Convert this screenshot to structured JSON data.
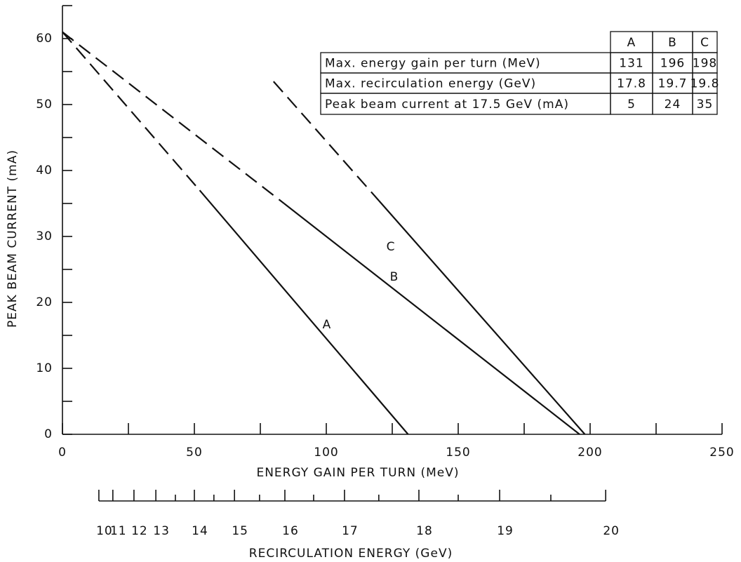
{
  "chart_data": {
    "type": "line",
    "xlabel": "ENERGY GAIN PER TURN (MeV)",
    "ylabel": "PEAK BEAM CURRENT (mA)",
    "xlim": [
      0,
      250
    ],
    "xticks": [
      0,
      50,
      100,
      150,
      200,
      250
    ],
    "xminor": [
      25,
      75,
      125,
      175,
      225
    ],
    "ylim": [
      0,
      65
    ],
    "yticks": [
      0,
      10,
      20,
      30,
      40,
      50,
      60
    ],
    "yminor": [
      5,
      15,
      25,
      35,
      45,
      55,
      65
    ],
    "color": "#111111",
    "series": [
      {
        "name": "A",
        "x": [
          0,
          52,
          131
        ],
        "values": [
          61,
          37,
          0
        ],
        "segment_styles": [
          "dashed",
          "solid"
        ]
      },
      {
        "name": "B",
        "x": [
          0,
          84,
          196
        ],
        "values": [
          61,
          35,
          0
        ],
        "segment_styles": [
          "dashed",
          "solid"
        ]
      },
      {
        "name": "C",
        "x": [
          80,
          120,
          198
        ],
        "values": [
          53.5,
          35.4,
          0
        ],
        "segment_styles": [
          "dashed",
          "solid"
        ]
      }
    ],
    "recirculation_axis": {
      "label": "RECIRCULATION ENERGY (GeV)",
      "ticks": [
        10,
        11,
        12,
        13,
        14,
        15,
        16,
        17,
        18,
        19,
        20
      ],
      "gain_at_ticks": [
        13.8,
        19.1,
        27.1,
        35.4,
        50.0,
        65.2,
        84.3,
        106.9,
        135.1,
        165.7,
        205.9
      ],
      "minor": [
        13.5,
        14.5,
        15.5,
        16.5,
        17.5,
        18.5,
        19.5
      ],
      "gain_at_minor": [
        42.8,
        57.4,
        74.7,
        95.2,
        119.9,
        150.0,
        185.1
      ]
    },
    "table": {
      "columns": [
        "A",
        "B",
        "C"
      ],
      "rows": [
        {
          "label": "Max. energy gain per turn (MeV)",
          "values": [
            131,
            196,
            198
          ]
        },
        {
          "label": "Max. recirculation energy (GeV)",
          "values": [
            17.8,
            19.7,
            19.8
          ]
        },
        {
          "label": "Peak beam current at 17.5 GeV (mA)",
          "values": [
            5,
            24,
            35
          ]
        }
      ]
    }
  }
}
